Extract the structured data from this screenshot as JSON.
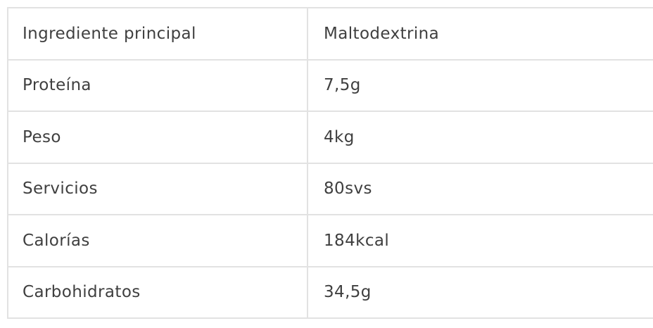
{
  "table": {
    "rows": [
      {
        "label": "Ingrediente principal",
        "value": "Maltodextrina"
      },
      {
        "label": "Proteína",
        "value": "7,5g"
      },
      {
        "label": "Peso",
        "value": "4kg"
      },
      {
        "label": "Servicios",
        "value": "80svs"
      },
      {
        "label": "Calorías",
        "value": "184kcal"
      },
      {
        "label": "Carbohidratos",
        "value": "34,5g"
      }
    ],
    "colors": {
      "border": "#e2e2e2",
      "text": "#3f3f3f",
      "background": "#ffffff"
    }
  }
}
